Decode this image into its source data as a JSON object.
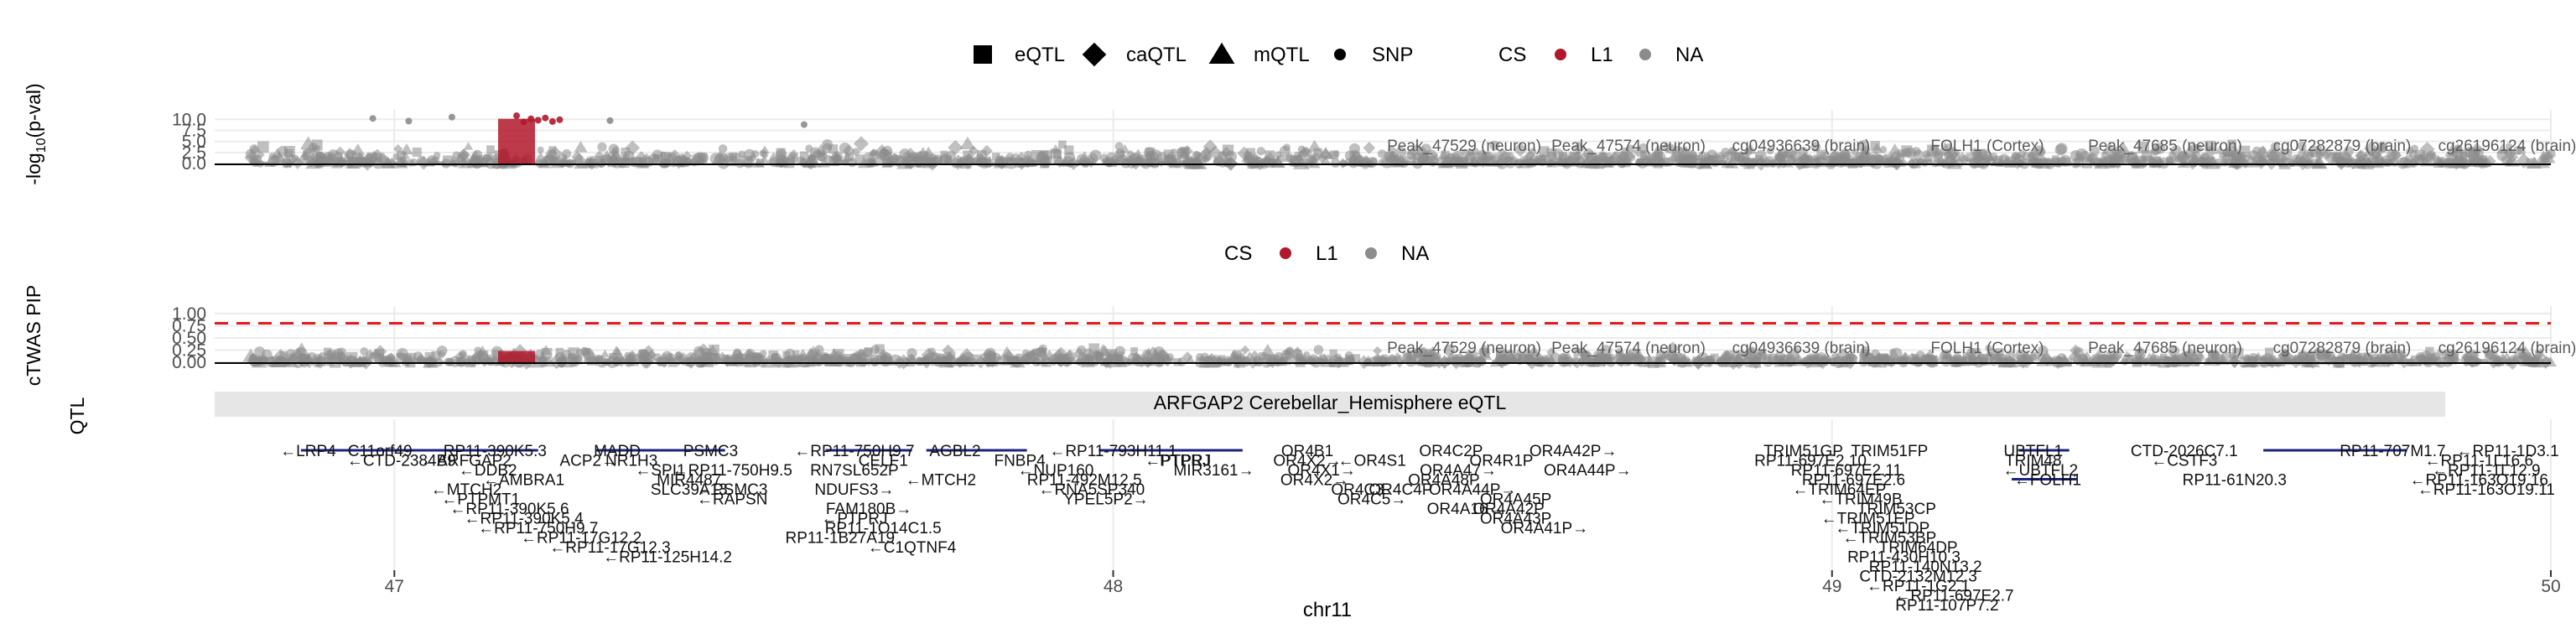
{
  "colors": {
    "cs_l1": "#b2182b",
    "cs_na": "#8c8c8c",
    "gene_line": "#1a237e",
    "threshold": "#e41a1c",
    "panel_strip": "#e6e6e6",
    "grid": "#ebebeb"
  },
  "legend_top": {
    "shape_items": [
      {
        "label": "eQTL",
        "shape": "square"
      },
      {
        "label": "caQTL",
        "shape": "diamond"
      },
      {
        "label": "mQTL",
        "shape": "triangle"
      },
      {
        "label": "SNP",
        "shape": "circle"
      }
    ],
    "cs_title": "CS",
    "cs_items": [
      {
        "label": "L1",
        "color": "#b2182b"
      },
      {
        "label": "NA",
        "color": "#8c8c8c"
      }
    ]
  },
  "legend_mid": {
    "cs_title": "CS",
    "cs_items": [
      {
        "label": "L1",
        "color": "#b2182b"
      },
      {
        "label": "NA",
        "color": "#8c8c8c"
      }
    ]
  },
  "chart_data": [
    {
      "type": "scatter",
      "panel": "gwas",
      "ylabel": "-log10(p-val)",
      "ylabel_main": "-log",
      "ylabel_sub": "10",
      "ylabel_tail": "(p-val)",
      "ylim": [
        0,
        11
      ],
      "yticks": [
        "0.0",
        "2.5",
        "5.0",
        "7.5",
        "10.0"
      ],
      "ytick_values": [
        0,
        2.5,
        5,
        7.5,
        10
      ],
      "xlim": [
        46.85,
        50.0
      ],
      "grid": true,
      "region_labels": [
        {
          "label": "Peak_47529 (neuron)",
          "x": 47.62
        },
        {
          "label": "Peak_47574 (neuron)",
          "x": 47.83
        },
        {
          "label": "cg04936639 (brain)",
          "x": 48.08
        },
        {
          "label": "FOLH1 (Cortex)",
          "x": 48.27
        },
        {
          "label": "Peak_47685 (neuron)",
          "x": 48.46
        },
        {
          "label": "cg07282879 (brain)",
          "x": 48.65
        },
        {
          "label": "cg26196124 (brain)",
          "x": 48.92
        }
      ],
      "highlight_x": 47.17,
      "lead_points": [
        {
          "x": 46.97,
          "y": 10.2
        },
        {
          "x": 47.02,
          "y": 9.6
        },
        {
          "x": 47.08,
          "y": 10.5
        },
        {
          "x": 47.17,
          "y": 10.8
        },
        {
          "x": 47.18,
          "y": 9.4
        },
        {
          "x": 47.19,
          "y": 10.1
        },
        {
          "x": 47.2,
          "y": 9.8
        },
        {
          "x": 47.21,
          "y": 10.3
        },
        {
          "x": 47.22,
          "y": 9.5
        },
        {
          "x": 47.23,
          "y": 9.9
        },
        {
          "x": 47.3,
          "y": 9.7
        },
        {
          "x": 47.57,
          "y": 8.8
        }
      ]
    },
    {
      "type": "scatter",
      "panel": "pip",
      "ylabel": "cTWAS PIP",
      "ylim": [
        0,
        1.05
      ],
      "yticks": [
        "0.00",
        "0.25",
        "0.50",
        "0.75",
        "1.00"
      ],
      "ytick_values": [
        0,
        0.25,
        0.5,
        0.75,
        1.0
      ],
      "threshold": 0.8,
      "xlim": [
        46.85,
        50.0
      ],
      "grid": true,
      "region_labels": [
        {
          "label": "Peak_47529 (neuron)",
          "x": 47.62
        },
        {
          "label": "Peak_47574 (neuron)",
          "x": 47.83
        },
        {
          "label": "cg04936639 (brain)",
          "x": 48.08
        },
        {
          "label": "FOLH1 (Cortex)",
          "x": 48.27
        },
        {
          "label": "Peak_47685 (neuron)",
          "x": 48.46
        },
        {
          "label": "cg07282879 (brain)",
          "x": 48.65
        },
        {
          "label": "cg26196124 (brain)",
          "x": 48.92
        }
      ],
      "highlight_x": 47.17
    },
    {
      "type": "gene_track",
      "panel": "genes",
      "strip_title": "ARFGAP2 Cerebellar_Hemisphere eQTL",
      "ylabel": "QTL",
      "xlabel": "chr11",
      "xlim": [
        46.85,
        50.0
      ],
      "xticks": [
        "47",
        "48",
        "49",
        "50"
      ],
      "xtick_values": [
        47,
        48,
        49,
        50
      ],
      "genes": [
        {
          "label": "←LRP4",
          "x": 46.88,
          "row": 0
        },
        {
          "label": "C11orf49",
          "x": 46.98,
          "row": 0
        },
        {
          "label": "←CTD-2384B9",
          "x": 47.01,
          "row": 1
        },
        {
          "label": "RP11-390K5.3",
          "x": 47.14,
          "row": 0
        },
        {
          "label": "←ARFGAP2",
          "x": 47.1,
          "row": 1
        },
        {
          "label": "←DDB2",
          "x": 47.13,
          "row": 2
        },
        {
          "label": "←AMBRA1",
          "x": 47.18,
          "row": 3
        },
        {
          "label": "←MTCH2",
          "x": 47.1,
          "row": 4
        },
        {
          "label": "←PTPMT1",
          "x": 47.12,
          "row": 5
        },
        {
          "label": "←RP11-390K5.6",
          "x": 47.16,
          "row": 6
        },
        {
          "label": "←RP11-390K5.4",
          "x": 47.18,
          "row": 7
        },
        {
          "label": "←RP11-750H9.7",
          "x": 47.2,
          "row": 8
        },
        {
          "label": "←RP11-17G12.2",
          "x": 47.26,
          "row": 9
        },
        {
          "label": "←RP11-17G12.3",
          "x": 47.3,
          "row": 10
        },
        {
          "label": "←RP11-125H14.2",
          "x": 47.38,
          "row": 11
        },
        {
          "label": "MADD",
          "x": 47.31,
          "row": 0
        },
        {
          "label": "ACP2→",
          "x": 47.27,
          "row": 1
        },
        {
          "label": "NR1H3",
          "x": 47.33,
          "row": 1
        },
        {
          "label": "←SPI1",
          "x": 47.37,
          "row": 2
        },
        {
          "label": "PSMC3",
          "x": 47.44,
          "row": 0
        },
        {
          "label": "←RP11-750H9.5",
          "x": 47.47,
          "row": 2
        },
        {
          "label": "MIR4487",
          "x": 47.41,
          "row": 3
        },
        {
          "label": "SLC39A13",
          "x": 47.41,
          "row": 4
        },
        {
          "label": "←PSMC3",
          "x": 47.47,
          "row": 4
        },
        {
          "label": "←RAPSN",
          "x": 47.47,
          "row": 5
        },
        {
          "label": "←RP11-750H9.7",
          "x": 47.64,
          "row": 0
        },
        {
          "label": "RN7SL652P",
          "x": 47.64,
          "row": 2
        },
        {
          "label": "CELF1",
          "x": 47.68,
          "row": 1
        },
        {
          "label": "NDUFS3→",
          "x": 47.64,
          "row": 4
        },
        {
          "label": "←MTCH2",
          "x": 47.76,
          "row": 3
        },
        {
          "label": "FAM180B→",
          "x": 47.66,
          "row": 6
        },
        {
          "label": "←PTPRJ",
          "x": 47.64,
          "row": 7
        },
        {
          "label": "←C1QTNF4",
          "x": 47.72,
          "row": 10
        },
        {
          "label": "RP11-1O14C1.5",
          "x": 47.68,
          "row": 8
        },
        {
          "label": "RP11-1B27A19",
          "x": 47.62,
          "row": 9
        },
        {
          "label": "AGBL2",
          "x": 47.78,
          "row": 0
        },
        {
          "label": "FNBP4",
          "x": 47.87,
          "row": 1
        },
        {
          "label": "←NUP160",
          "x": 47.92,
          "row": 2
        },
        {
          "label": "RP11-492M12.5",
          "x": 47.96,
          "row": 3
        },
        {
          "label": "←RNA5SP340",
          "x": 47.97,
          "row": 4
        },
        {
          "label": "YPEL5P2→",
          "x": 47.99,
          "row": 5
        },
        {
          "label": "←RP11-793H11.1",
          "x": 48.0,
          "row": 0
        },
        {
          "label": "PTPRJ",
          "x": 48.1,
          "row": 1
        },
        {
          "label": "←PTPRJ",
          "x": 48.09,
          "row": 1
        },
        {
          "label": "MIR3161→",
          "x": 48.14,
          "row": 2
        },
        {
          "label": "OR4B1",
          "x": 48.27,
          "row": 0
        },
        {
          "label": "OR4X2→",
          "x": 48.27,
          "row": 1
        },
        {
          "label": "←OR4S1",
          "x": 48.36,
          "row": 1
        },
        {
          "label": "OR4X1→",
          "x": 48.29,
          "row": 2
        },
        {
          "label": "OR4X2→",
          "x": 48.28,
          "row": 3
        },
        {
          "label": "OR4C5→",
          "x": 48.36,
          "row": 5
        },
        {
          "label": "OR4C3",
          "x": 48.34,
          "row": 4
        },
        {
          "label": "OR4C4P",
          "x": 48.4,
          "row": 4
        },
        {
          "label": "OR4C2P",
          "x": 48.47,
          "row": 0
        },
        {
          "label": "OR4R1P",
          "x": 48.54,
          "row": 1
        },
        {
          "label": "OR4A47→",
          "x": 48.48,
          "row": 2
        },
        {
          "label": "OR4A48P",
          "x": 48.46,
          "row": 3
        },
        {
          "label": "OR4A44P→",
          "x": 48.5,
          "row": 4
        },
        {
          "label": "OR4A45P",
          "x": 48.56,
          "row": 5
        },
        {
          "label": "OR4A16→",
          "x": 48.49,
          "row": 6
        },
        {
          "label": "OR4A42P",
          "x": 48.55,
          "row": 6
        },
        {
          "label": "OR4A43P",
          "x": 48.56,
          "row": 7
        },
        {
          "label": "OR4A42P→",
          "x": 48.64,
          "row": 0
        },
        {
          "label": "OR4A44P→",
          "x": 48.66,
          "row": 2
        },
        {
          "label": "OR4A41P→",
          "x": 48.6,
          "row": 8
        },
        {
          "label": "TRIM51GP",
          "x": 48.96,
          "row": 0
        },
        {
          "label": "TRIM51FP",
          "x": 49.08,
          "row": 0
        },
        {
          "label": "RP11-697E2.10",
          "x": 48.97,
          "row": 1
        },
        {
          "label": "RP11-697E2.11",
          "x": 49.02,
          "row": 2
        },
        {
          "label": "RP11-697E2.6",
          "x": 49.03,
          "row": 3
        },
        {
          "label": "←TRIM64EP",
          "x": 49.01,
          "row": 4
        },
        {
          "label": "←TRIM49B",
          "x": 49.04,
          "row": 5
        },
        {
          "label": "TRIM53CP",
          "x": 49.09,
          "row": 6
        },
        {
          "label": "←TRIM51EP",
          "x": 49.05,
          "row": 7
        },
        {
          "label": "←TRIM51DP",
          "x": 49.07,
          "row": 8
        },
        {
          "label": "←TRIM53BP",
          "x": 49.08,
          "row": 9
        },
        {
          "label": "TRIM64DP",
          "x": 49.12,
          "row": 10
        },
        {
          "label": "RP11-430H10.3",
          "x": 49.1,
          "row": 11
        },
        {
          "label": "RP11-140N13.2",
          "x": 49.13,
          "row": 12
        },
        {
          "label": "CTD-2132M12.3",
          "x": 49.12,
          "row": 13
        },
        {
          "label": "←RP11-1G2.1",
          "x": 49.12,
          "row": 14
        },
        {
          "label": "←RP11-697E2.7",
          "x": 49.17,
          "row": 15
        },
        {
          "label": "RP11-107P7.2",
          "x": 49.16,
          "row": 16
        },
        {
          "label": "UBTFL1",
          "x": 49.28,
          "row": 0
        },
        {
          "label": "TRIM48",
          "x": 49.28,
          "row": 1
        },
        {
          "label": "←UBTFL2",
          "x": 49.29,
          "row": 2
        },
        {
          "label": "←FOLH1",
          "x": 49.3,
          "row": 3
        },
        {
          "label": "CTD-2026C7.1",
          "x": 49.49,
          "row": 0
        },
        {
          "label": "←CSTF3",
          "x": 49.49,
          "row": 1
        },
        {
          "label": "RP11-61N20.3",
          "x": 49.56,
          "row": 3
        },
        {
          "label": "RP11-707M1.7",
          "x": 49.78,
          "row": 0
        },
        {
          "label": "←RP11-1L16.6",
          "x": 49.9,
          "row": 1
        },
        {
          "label": "←RP11-1L12.9",
          "x": 49.91,
          "row": 2
        },
        {
          "label": "←RP11-163O19.16",
          "x": 49.9,
          "row": 3
        },
        {
          "label": "←RP11-163O19.11",
          "x": 49.91,
          "row": 4
        },
        {
          "label": "←RP11-1D3.1",
          "x": 49.94,
          "row": 0
        }
      ],
      "gene_lines": [
        {
          "x0": 46.87,
          "x1": 46.96,
          "row": 0
        },
        {
          "x0": 46.92,
          "x1": 47.1,
          "row": 0
        },
        {
          "x0": 47.09,
          "x1": 47.2,
          "row": 0
        },
        {
          "x0": 47.28,
          "x1": 47.46,
          "row": 0
        },
        {
          "x0": 47.6,
          "x1": 47.72,
          "row": 0
        },
        {
          "x0": 47.74,
          "x1": 47.88,
          "row": 0
        },
        {
          "x0": 47.98,
          "x1": 48.18,
          "row": 0
        },
        {
          "x0": 49.26,
          "x1": 49.33,
          "row": 0
        },
        {
          "x0": 49.25,
          "x1": 49.34,
          "row": 3
        },
        {
          "x0": 49.6,
          "x1": 49.8,
          "row": 0
        }
      ]
    }
  ]
}
